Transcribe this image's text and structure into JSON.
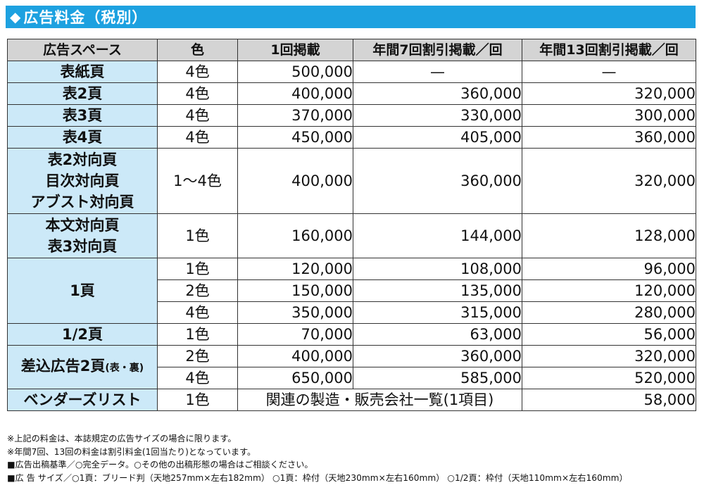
{
  "header": {
    "icon": "diamond-icon",
    "title": "広告料金（税別）",
    "bar_color": "#1da1e0"
  },
  "table": {
    "headers": [
      "広告スペース",
      "色",
      "1回掲載",
      "年間7回割引掲載／回",
      "年間13回割引掲載／回"
    ],
    "rows": [
      {
        "space": "表紙頁",
        "color": "4色",
        "once": "500,000",
        "y7": "—",
        "y13": "—"
      },
      {
        "space": "表2頁",
        "color": "4色",
        "once": "400,000",
        "y7": "360,000",
        "y13": "320,000"
      },
      {
        "space": "表3頁",
        "color": "4色",
        "once": "370,000",
        "y7": "330,000",
        "y13": "300,000"
      },
      {
        "space": "表4頁",
        "color": "4色",
        "once": "450,000",
        "y7": "405,000",
        "y13": "360,000"
      },
      {
        "space_lines": [
          "表2対向頁",
          "目次対向頁",
          "アブスト対向頁"
        ],
        "color": "1〜4色",
        "once": "400,000",
        "y7": "360,000",
        "y13": "320,000"
      },
      {
        "space_lines": [
          "本文対向頁",
          "表3対向頁"
        ],
        "color": "1色",
        "once": "160,000",
        "y7": "144,000",
        "y13": "128,000"
      },
      {
        "space": "1頁",
        "sub": [
          {
            "color": "1色",
            "once": "120,000",
            "y7": "108,000",
            "y13": "96,000"
          },
          {
            "color": "2色",
            "once": "150,000",
            "y7": "135,000",
            "y13": "120,000"
          },
          {
            "color": "4色",
            "once": "350,000",
            "y7": "315,000",
            "y13": "280,000"
          }
        ]
      },
      {
        "space": "1/2頁",
        "color": "1色",
        "once": "70,000",
        "y7": "63,000",
        "y13": "56,000"
      },
      {
        "space": "差込広告2頁",
        "space_small": "(表・裏)",
        "sub": [
          {
            "color": "2色",
            "once": "400,000",
            "y7": "360,000",
            "y13": "320,000"
          },
          {
            "color": "4色",
            "once": "650,000",
            "y7": "585,000",
            "y13": "520,000"
          }
        ]
      },
      {
        "space": "ベンダーズリスト",
        "color": "1色",
        "note": "関連の製造・販売会社一覧(1項目)",
        "y13": "58,000"
      }
    ],
    "label_bg": "#cce9f8",
    "header_bg": "#d4d4d4"
  },
  "notes": [
    "※上記の料金は、本誌規定の広告サイズの場合に限ります。",
    "※年間7回、13回の料金は割引料金(1回当たり)となっています。",
    "■広告出稿基準／○完全データ。○その他の出稿形態の場合はご相談ください。",
    "■広 告 サイズ／○1頁：ブリード判（天地257mm×左右182mm） ○1頁：枠付（天地230mm×左右160mm） ○1/2頁：枠付（天地110mm×左右160mm）"
  ]
}
